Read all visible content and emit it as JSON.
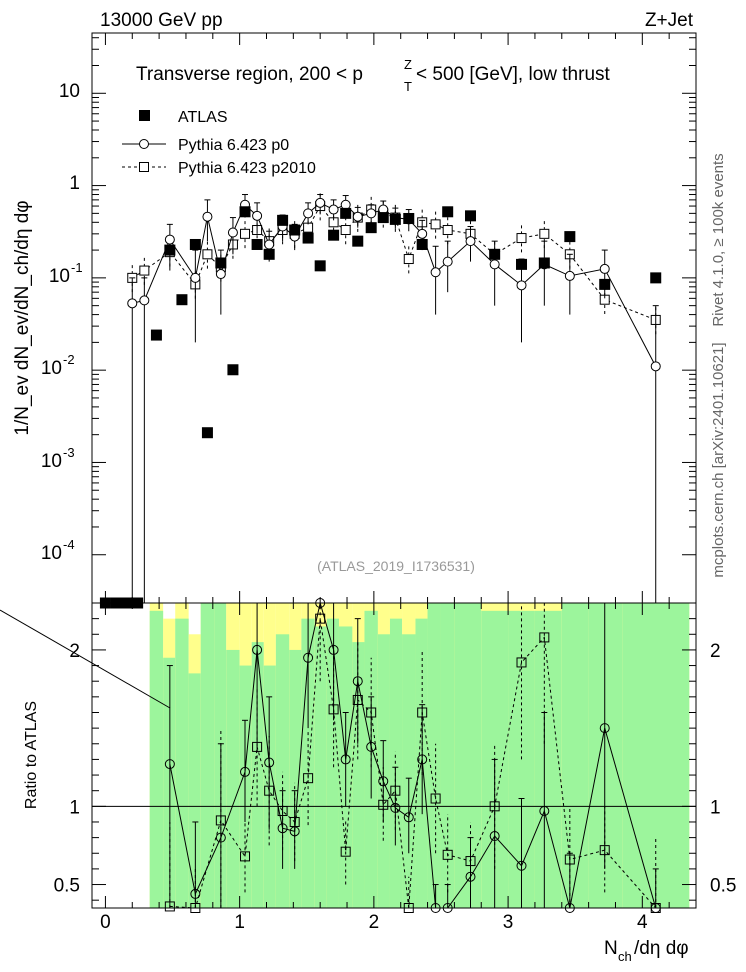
{
  "header": {
    "left": "13000 GeV pp",
    "right": "Z+Jet"
  },
  "side_labels": {
    "rivet": "Rivet 4.1.0, ≥ 100k events",
    "mcplots": "mcplots.cern.ch [arXiv:2401.10621]"
  },
  "colors": {
    "band_green": "#9cf59c",
    "band_yellow": "#ffff8c",
    "data": "#000000"
  },
  "chart_data": [
    {
      "type": "scatter",
      "name": "main",
      "title_prefix": "Transverse region, 200 < p",
      "title_sup": "Z",
      "title_sub": "T",
      "title_suffix": " < 500 [GeV], low thrust",
      "ylabel": "1/N_ev dN_ev/dN_ch/dη dφ",
      "yscale": "log",
      "ylim": [
        3e-05,
        45
      ],
      "xlim": [
        -0.1,
        4.4
      ],
      "ytick_labels": {
        "t1": "10",
        "t0": "1",
        "tm1": "10",
        "tm1e": "-1",
        "tm2": "10",
        "tm2e": "-2",
        "tm3": "10",
        "tm3e": "-3",
        "tm4": "10",
        "tm4e": "-4"
      },
      "analysis_label": "(ATLAS_2019_I1736531)",
      "legend": {
        "atlas": "ATLAS",
        "p0": "Pythia 6.423 p0",
        "p2010": "Pythia 6.423 p2010"
      },
      "atlas": [
        {
          "x": 0.0,
          "y": 3e-05
        },
        {
          "x": 0.08,
          "y": 3e-05
        },
        {
          "x": 0.16,
          "y": 3e-05
        },
        {
          "x": 0.24,
          "y": 3e-05
        },
        {
          "x": 0.38,
          "y": 0.024
        },
        {
          "x": 0.48,
          "y": 0.2
        },
        {
          "x": 0.57,
          "y": 0.058
        },
        {
          "x": 0.67,
          "y": 0.23
        },
        {
          "x": 0.76,
          "y": 0.0021
        },
        {
          "x": 0.86,
          "y": 0.145
        },
        {
          "x": 0.95,
          "y": 0.0101
        },
        {
          "x": 1.04,
          "y": 0.52
        },
        {
          "x": 1.13,
          "y": 0.23
        },
        {
          "x": 1.22,
          "y": 0.18
        },
        {
          "x": 1.32,
          "y": 0.42
        },
        {
          "x": 1.41,
          "y": 0.33
        },
        {
          "x": 1.51,
          "y": 0.27
        },
        {
          "x": 1.6,
          "y": 0.135
        },
        {
          "x": 1.7,
          "y": 0.29
        },
        {
          "x": 1.79,
          "y": 0.5
        },
        {
          "x": 1.88,
          "y": 0.25
        },
        {
          "x": 1.98,
          "y": 0.35
        },
        {
          "x": 2.07,
          "y": 0.45
        },
        {
          "x": 2.16,
          "y": 0.43
        },
        {
          "x": 2.26,
          "y": 0.44
        },
        {
          "x": 2.36,
          "y": 0.23
        },
        {
          "x": 2.55,
          "y": 0.52
        },
        {
          "x": 2.72,
          "y": 0.47
        },
        {
          "x": 2.9,
          "y": 0.18
        },
        {
          "x": 3.1,
          "y": 0.14
        },
        {
          "x": 3.27,
          "y": 0.145
        },
        {
          "x": 3.46,
          "y": 0.28
        },
        {
          "x": 3.72,
          "y": 0.085
        },
        {
          "x": 4.1,
          "y": 0.1
        }
      ],
      "p0": [
        {
          "x": 0.2,
          "y": 0.053,
          "lo": 3e-05,
          "hi": 0.1
        },
        {
          "x": 0.29,
          "y": 0.057,
          "lo": 3e-05,
          "hi": 0.1
        },
        {
          "x": 0.48,
          "y": 0.26,
          "lo": 0.12,
          "hi": 0.38
        },
        {
          "x": 0.67,
          "y": 0.1,
          "lo": 0.02,
          "hi": 0.2
        },
        {
          "x": 0.76,
          "y": 0.46,
          "lo": 0.25,
          "hi": 0.7
        },
        {
          "x": 0.86,
          "y": 0.11,
          "lo": 0.04,
          "hi": 0.2
        },
        {
          "x": 0.95,
          "y": 0.31,
          "lo": 0.18,
          "hi": 0.45
        },
        {
          "x": 1.04,
          "y": 0.62,
          "lo": 0.45,
          "hi": 0.8
        },
        {
          "x": 1.13,
          "y": 0.47,
          "lo": 0.3,
          "hi": 0.65
        },
        {
          "x": 1.22,
          "y": 0.23,
          "lo": 0.15,
          "hi": 0.32
        },
        {
          "x": 1.32,
          "y": 0.36,
          "lo": 0.25,
          "hi": 0.48
        },
        {
          "x": 1.41,
          "y": 0.28,
          "lo": 0.2,
          "hi": 0.38
        },
        {
          "x": 1.51,
          "y": 0.5,
          "lo": 0.38,
          "hi": 0.65
        },
        {
          "x": 1.6,
          "y": 0.65,
          "lo": 0.5,
          "hi": 0.8
        },
        {
          "x": 1.7,
          "y": 0.55,
          "lo": 0.42,
          "hi": 0.7
        },
        {
          "x": 1.79,
          "y": 0.62,
          "lo": 0.48,
          "hi": 0.78
        },
        {
          "x": 1.88,
          "y": 0.46,
          "lo": 0.35,
          "hi": 0.58
        },
        {
          "x": 1.98,
          "y": 0.5,
          "lo": 0.38,
          "hi": 0.62
        },
        {
          "x": 2.07,
          "y": 0.55,
          "lo": 0.42,
          "hi": 0.68
        },
        {
          "x": 2.16,
          "y": 0.45,
          "lo": 0.34,
          "hi": 0.57
        },
        {
          "x": 2.26,
          "y": 0.43,
          "lo": 0.32,
          "hi": 0.55
        },
        {
          "x": 2.36,
          "y": 0.3,
          "lo": 0.2,
          "hi": 0.42
        },
        {
          "x": 2.46,
          "y": 0.115,
          "lo": 0.04,
          "hi": 0.22
        },
        {
          "x": 2.55,
          "y": 0.15,
          "lo": 0.07,
          "hi": 0.25
        },
        {
          "x": 2.72,
          "y": 0.25,
          "lo": 0.15,
          "hi": 0.36
        },
        {
          "x": 2.9,
          "y": 0.14,
          "lo": 0.05,
          "hi": 0.25
        },
        {
          "x": 3.1,
          "y": 0.083,
          "lo": 0.02,
          "hi": 0.16
        },
        {
          "x": 3.27,
          "y": 0.14,
          "lo": 0.05,
          "hi": 0.25
        },
        {
          "x": 3.46,
          "y": 0.105,
          "lo": 0.04,
          "hi": 0.18
        },
        {
          "x": 3.72,
          "y": 0.125,
          "lo": 0.06,
          "hi": 0.2
        },
        {
          "x": 4.1,
          "y": 0.011,
          "lo": 3e-05,
          "hi": 0.05
        }
      ],
      "p2010": [
        {
          "x": 0.2,
          "y": 0.1
        },
        {
          "x": 0.29,
          "y": 0.12
        },
        {
          "x": 0.48,
          "y": 0.19
        },
        {
          "x": 0.67,
          "y": 0.085
        },
        {
          "x": 0.76,
          "y": 0.18
        },
        {
          "x": 0.86,
          "y": 0.13
        },
        {
          "x": 0.95,
          "y": 0.23
        },
        {
          "x": 1.04,
          "y": 0.3
        },
        {
          "x": 1.13,
          "y": 0.33
        },
        {
          "x": 1.22,
          "y": 0.25
        },
        {
          "x": 1.32,
          "y": 0.33
        },
        {
          "x": 1.41,
          "y": 0.3
        },
        {
          "x": 1.51,
          "y": 0.35
        },
        {
          "x": 1.6,
          "y": 0.6
        },
        {
          "x": 1.7,
          "y": 0.4
        },
        {
          "x": 1.79,
          "y": 0.33
        },
        {
          "x": 1.88,
          "y": 0.45
        },
        {
          "x": 1.98,
          "y": 0.55
        },
        {
          "x": 2.07,
          "y": 0.5
        },
        {
          "x": 2.16,
          "y": 0.45
        },
        {
          "x": 2.26,
          "y": 0.16
        },
        {
          "x": 2.36,
          "y": 0.4
        },
        {
          "x": 2.46,
          "y": 0.38
        },
        {
          "x": 2.55,
          "y": 0.33
        },
        {
          "x": 2.72,
          "y": 0.3
        },
        {
          "x": 2.9,
          "y": 0.18
        },
        {
          "x": 3.1,
          "y": 0.27
        },
        {
          "x": 3.27,
          "y": 0.3
        },
        {
          "x": 3.46,
          "y": 0.18
        },
        {
          "x": 3.72,
          "y": 0.058
        },
        {
          "x": 4.1,
          "y": 0.035
        }
      ]
    },
    {
      "type": "scatter",
      "name": "ratio",
      "ylabel": "Ratio to ATLAS",
      "xlabel_main": "N",
      "xlabel_sub": "ch",
      "xlabel_rest": "/dη dφ",
      "ylim": [
        0.35,
        2.3
      ],
      "xlim": [
        -0.1,
        4.4
      ],
      "yticks": [
        0.5,
        1,
        2
      ],
      "ytick_labels": [
        "0.5",
        "1",
        "2"
      ],
      "xticks": [
        0,
        1,
        2,
        3,
        4
      ],
      "xtick_labels": [
        "0",
        "1",
        "2",
        "3",
        "4"
      ],
      "bands": [
        {
          "x0": 0.33,
          "x1": 0.43,
          "g": 2.25,
          "y": 2.3
        },
        {
          "x0": 0.43,
          "x1": 0.52,
          "g": 1.95,
          "y": 2.2
        },
        {
          "x0": 0.52,
          "x1": 0.62,
          "g": 2.2,
          "y": 2.3
        },
        {
          "x0": 0.62,
          "x1": 0.71,
          "g": 1.85,
          "y": 2.1
        },
        {
          "x0": 0.71,
          "x1": 0.81,
          "g": 2.3,
          "y": 2.3
        },
        {
          "x0": 0.81,
          "x1": 0.9,
          "g": 2.3,
          "y": 2.3
        },
        {
          "x0": 0.9,
          "x1": 1.0,
          "g": 2.0,
          "y": 2.3
        },
        {
          "x0": 1.0,
          "x1": 1.09,
          "g": 1.9,
          "y": 2.3
        },
        {
          "x0": 1.09,
          "x1": 1.18,
          "g": 2.05,
          "y": 2.3
        },
        {
          "x0": 1.18,
          "x1": 1.27,
          "g": 1.9,
          "y": 2.3
        },
        {
          "x0": 1.27,
          "x1": 1.37,
          "g": 2.1,
          "y": 2.3
        },
        {
          "x0": 1.37,
          "x1": 1.46,
          "g": 2.0,
          "y": 2.3
        },
        {
          "x0": 1.46,
          "x1": 1.56,
          "g": 2.2,
          "y": 2.3
        },
        {
          "x0": 1.56,
          "x1": 1.65,
          "g": 2.15,
          "y": 2.3
        },
        {
          "x0": 1.65,
          "x1": 1.74,
          "g": 2.2,
          "y": 2.3
        },
        {
          "x0": 1.74,
          "x1": 1.84,
          "g": 2.15,
          "y": 2.3
        },
        {
          "x0": 1.84,
          "x1": 1.93,
          "g": 2.05,
          "y": 2.3
        },
        {
          "x0": 1.93,
          "x1": 2.03,
          "g": 2.25,
          "y": 2.3
        },
        {
          "x0": 2.03,
          "x1": 2.12,
          "g": 2.1,
          "y": 2.3
        },
        {
          "x0": 2.12,
          "x1": 2.21,
          "g": 2.2,
          "y": 2.3
        },
        {
          "x0": 2.21,
          "x1": 2.31,
          "g": 2.1,
          "y": 2.3
        },
        {
          "x0": 2.31,
          "x1": 2.4,
          "g": 2.2,
          "y": 2.3
        },
        {
          "x0": 2.4,
          "x1": 2.5,
          "g": 2.3,
          "y": 2.3
        },
        {
          "x0": 2.5,
          "x1": 2.6,
          "g": 2.3,
          "y": 2.3
        },
        {
          "x0": 2.6,
          "x1": 2.8,
          "g": 2.3,
          "y": 2.3
        },
        {
          "x0": 2.8,
          "x1": 3.0,
          "g": 2.25,
          "y": 2.3
        },
        {
          "x0": 3.0,
          "x1": 3.2,
          "g": 2.25,
          "y": 2.3
        },
        {
          "x0": 3.2,
          "x1": 3.4,
          "g": 2.25,
          "y": 2.3
        },
        {
          "x0": 3.4,
          "x1": 3.6,
          "g": 2.3,
          "y": 2.3
        },
        {
          "x0": 3.6,
          "x1": 3.85,
          "g": 2.3,
          "y": 2.3
        },
        {
          "x0": 3.85,
          "x1": 4.35,
          "g": 2.3,
          "y": 2.3
        }
      ],
      "p0": [
        {
          "x": 0.48,
          "y": 1.27,
          "lo": 0.35,
          "hi": 1.9
        },
        {
          "x": 0.67,
          "y": 0.44,
          "lo": 0.35,
          "hi": 0.9
        },
        {
          "x": 0.86,
          "y": 0.8,
          "lo": 0.35,
          "hi": 1.4
        },
        {
          "x": 1.04,
          "y": 1.22,
          "lo": 0.9,
          "hi": 1.55
        },
        {
          "x": 1.13,
          "y": 2.0,
          "lo": 1.35,
          "hi": 2.3
        },
        {
          "x": 1.22,
          "y": 1.28,
          "lo": 0.85,
          "hi": 1.7
        },
        {
          "x": 1.32,
          "y": 0.86,
          "lo": 0.6,
          "hi": 1.1
        },
        {
          "x": 1.41,
          "y": 0.84,
          "lo": 0.6,
          "hi": 1.1
        },
        {
          "x": 1.51,
          "y": 1.95,
          "lo": 1.5,
          "hi": 2.3
        },
        {
          "x": 1.6,
          "y": 2.3,
          "lo": 2.3,
          "hi": 2.3
        },
        {
          "x": 1.7,
          "y": 2.0,
          "lo": 1.55,
          "hi": 2.3
        },
        {
          "x": 1.79,
          "y": 1.3,
          "lo": 1.0,
          "hi": 1.6
        },
        {
          "x": 1.88,
          "y": 1.8,
          "lo": 1.4,
          "hi": 2.2
        },
        {
          "x": 1.98,
          "y": 1.38,
          "lo": 1.05,
          "hi": 1.7
        },
        {
          "x": 2.07,
          "y": 1.16,
          "lo": 0.9,
          "hi": 1.42
        },
        {
          "x": 2.16,
          "y": 0.99,
          "lo": 0.75,
          "hi": 1.25
        },
        {
          "x": 2.26,
          "y": 0.93,
          "lo": 0.7,
          "hi": 1.18
        },
        {
          "x": 2.36,
          "y": 1.3,
          "lo": 0.95,
          "hi": 1.65
        },
        {
          "x": 2.46,
          "y": 0.35,
          "lo": 0.35,
          "hi": 0.5
        },
        {
          "x": 2.55,
          "y": 0.35,
          "lo": 0.35,
          "hi": 0.5
        },
        {
          "x": 2.72,
          "y": 0.55,
          "lo": 0.35,
          "hi": 0.8
        },
        {
          "x": 2.9,
          "y": 0.81,
          "lo": 0.35,
          "hi": 1.3
        },
        {
          "x": 3.1,
          "y": 0.62,
          "lo": 0.35,
          "hi": 1.05
        },
        {
          "x": 3.27,
          "y": 0.97,
          "lo": 0.35,
          "hi": 1.6
        },
        {
          "x": 3.46,
          "y": 0.35,
          "lo": 0.35,
          "hi": 0.7
        },
        {
          "x": 3.72,
          "y": 1.5,
          "lo": 0.6,
          "hi": 2.3
        },
        {
          "x": 4.1,
          "y": 0.35,
          "lo": 0.35,
          "hi": 0.6
        }
      ],
      "p2010": [
        {
          "x": 0.48,
          "y": 0.36,
          "lo": 0.35,
          "hi": 0.9
        },
        {
          "x": 0.67,
          "y": 0.35,
          "lo": 0.35,
          "hi": 0.6
        },
        {
          "x": 0.86,
          "y": 0.91,
          "lo": 0.35,
          "hi": 1.5
        },
        {
          "x": 1.04,
          "y": 0.68,
          "lo": 0.45,
          "hi": 0.9
        },
        {
          "x": 1.13,
          "y": 1.38,
          "lo": 1.0,
          "hi": 1.75
        },
        {
          "x": 1.22,
          "y": 1.1,
          "lo": 0.75,
          "hi": 1.45
        },
        {
          "x": 1.32,
          "y": 0.97,
          "lo": 0.72,
          "hi": 1.22
        },
        {
          "x": 1.41,
          "y": 0.9,
          "lo": 0.65,
          "hi": 1.15
        },
        {
          "x": 1.51,
          "y": 1.18,
          "lo": 0.88,
          "hi": 1.48
        },
        {
          "x": 1.6,
          "y": 2.2,
          "lo": 1.8,
          "hi": 2.3
        },
        {
          "x": 1.7,
          "y": 1.62,
          "lo": 1.25,
          "hi": 2.0
        },
        {
          "x": 1.79,
          "y": 0.71,
          "lo": 0.5,
          "hi": 0.92
        },
        {
          "x": 1.88,
          "y": 1.68,
          "lo": 1.3,
          "hi": 2.05
        },
        {
          "x": 1.98,
          "y": 1.6,
          "lo": 1.25,
          "hi": 1.95
        },
        {
          "x": 2.07,
          "y": 1.01,
          "lo": 0.78,
          "hi": 1.25
        },
        {
          "x": 2.16,
          "y": 1.1,
          "lo": 0.85,
          "hi": 1.35
        },
        {
          "x": 2.26,
          "y": 0.35,
          "lo": 0.35,
          "hi": 0.55
        },
        {
          "x": 2.36,
          "y": 1.6,
          "lo": 1.2,
          "hi": 2.0
        },
        {
          "x": 2.46,
          "y": 1.05,
          "lo": 0.7,
          "hi": 1.4
        },
        {
          "x": 2.55,
          "y": 0.69,
          "lo": 0.45,
          "hi": 0.95
        },
        {
          "x": 2.72,
          "y": 0.65,
          "lo": 0.4,
          "hi": 0.9
        },
        {
          "x": 2.9,
          "y": 1.0,
          "lo": 0.6,
          "hi": 1.4
        },
        {
          "x": 3.1,
          "y": 1.92,
          "lo": 1.3,
          "hi": 2.3
        },
        {
          "x": 3.27,
          "y": 2.08,
          "lo": 1.4,
          "hi": 2.3
        },
        {
          "x": 3.46,
          "y": 0.66,
          "lo": 0.35,
          "hi": 1.0
        },
        {
          "x": 3.72,
          "y": 0.72,
          "lo": 0.45,
          "hi": 1.0
        },
        {
          "x": 4.1,
          "y": 0.35,
          "lo": 0.35,
          "hi": 0.8
        }
      ]
    }
  ]
}
